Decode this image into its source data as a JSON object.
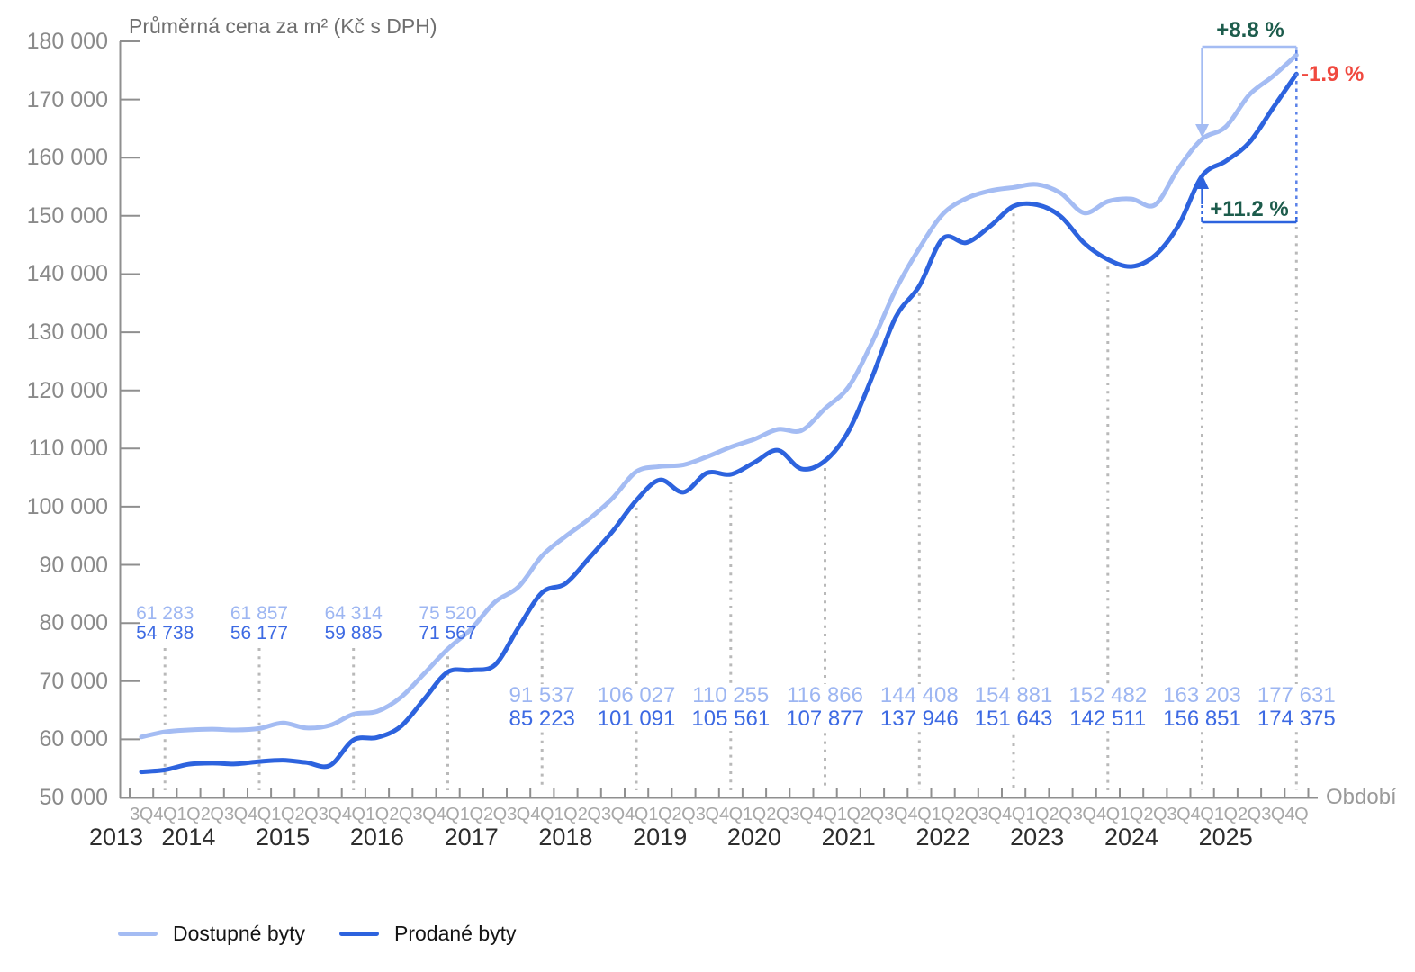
{
  "title": "Průměrná cena za m² (Kč s DPH)",
  "xlabel": "Období",
  "legend": {
    "items": [
      {
        "label": "Dostupné byty",
        "color": "#a4bcf3"
      },
      {
        "label": "Prodané byty",
        "color": "#2d63de"
      }
    ]
  },
  "annotations": {
    "available_growth": {
      "text": "+8.8 %",
      "color": "#1d5c4c"
    },
    "sold_growth": {
      "text": "+11.2 %",
      "color": "#1d5c4c"
    },
    "price_gap": {
      "text": "-1.9 %",
      "color": "#f0493f"
    }
  },
  "colors": {
    "available_line": "#a4bcf3",
    "sold_line": "#2d63de",
    "available_label_text": "#9db6f2",
    "sold_label_text": "#3d6ae3",
    "grid_dots": "#b9b9b9",
    "axis": "#8f8f8f",
    "annotation_blue_dashed": "#5b82e8"
  },
  "chart_data": {
    "type": "line",
    "title": "Průměrná cena za m² (Kč s DPH)",
    "xlabel": "Období",
    "ylim": [
      50000,
      180000
    ],
    "ytick_step": 10000,
    "grid": "vertical dotted lines at each 4Q",
    "legend_position": "bottom-left",
    "years": [
      "2013",
      "2014",
      "2015",
      "2016",
      "2017",
      "2018",
      "2019",
      "2020",
      "2021",
      "2022",
      "2023",
      "2024",
      "2025"
    ],
    "quarters": [
      "3Q 2013",
      "4Q 2013",
      "1Q 2014",
      "2Q 2014",
      "3Q 2014",
      "4Q 2014",
      "1Q 2015",
      "2Q 2015",
      "3Q 2015",
      "4Q 2015",
      "1Q 2016",
      "2Q 2016",
      "3Q 2016",
      "4Q 2016",
      "1Q 2017",
      "2Q 2017",
      "3Q 2017",
      "4Q 2017",
      "1Q 2018",
      "2Q 2018",
      "3Q 2018",
      "4Q 2018",
      "1Q 2019",
      "2Q 2019",
      "3Q 2019",
      "4Q 2019",
      "1Q 2020",
      "2Q 2020",
      "3Q 2020",
      "4Q 2020",
      "1Q 2021",
      "2Q 2021",
      "3Q 2021",
      "4Q 2021",
      "1Q 2022",
      "2Q 2022",
      "3Q 2022",
      "4Q 2022",
      "1Q 2023",
      "2Q 2023",
      "3Q 2023",
      "4Q 2023",
      "1Q 2024",
      "2Q 2024",
      "3Q 2024",
      "4Q 2024",
      "1Q 2025",
      "2Q 2025",
      "3Q 2025",
      "4Q 2025"
    ],
    "series": [
      {
        "name": "Dostupné byty",
        "color": "#a4bcf3",
        "values": [
          60400,
          61283,
          61600,
          61750,
          61600,
          61857,
          62800,
          61950,
          62400,
          64314,
          64800,
          67200,
          71300,
          75520,
          79000,
          83600,
          86200,
          91537,
          94900,
          97900,
          101500,
          106027,
          106900,
          107200,
          108600,
          110255,
          111600,
          113300,
          113100,
          116866,
          120600,
          128300,
          137300,
          144408,
          150300,
          153000,
          154300,
          154881,
          155400,
          153900,
          150500,
          152482,
          152900,
          151900,
          158200,
          163203,
          165300,
          170800,
          174000,
          177631
        ]
      },
      {
        "name": "Prodané byty",
        "color": "#2d63de",
        "values": [
          54400,
          54738,
          55700,
          55900,
          55750,
          56177,
          56400,
          56000,
          55500,
          59885,
          60300,
          62200,
          66900,
          71567,
          71900,
          72800,
          79200,
          85223,
          86800,
          91200,
          95800,
          101091,
          104600,
          102500,
          105800,
          105561,
          107600,
          109700,
          106500,
          107877,
          113000,
          122300,
          132600,
          137946,
          146100,
          145400,
          148200,
          151643,
          151900,
          149900,
          145300,
          142511,
          141300,
          143200,
          148400,
          156851,
          159400,
          162600,
          168500,
          174375
        ]
      }
    ],
    "labeled_quarters": [
      {
        "quarter": "4Q 2013",
        "available": 61283,
        "sold": 54738
      },
      {
        "quarter": "4Q 2014",
        "available": 61857,
        "sold": 56177
      },
      {
        "quarter": "4Q 2015",
        "available": 64314,
        "sold": 59885
      },
      {
        "quarter": "4Q 2016",
        "available": 75520,
        "sold": 71567
      },
      {
        "quarter": "4Q 2017",
        "available": 91537,
        "sold": 85223
      },
      {
        "quarter": "4Q 2018",
        "available": 106027,
        "sold": 101091
      },
      {
        "quarter": "4Q 2019",
        "available": 110255,
        "sold": 105561
      },
      {
        "quarter": "4Q 2020",
        "available": 116866,
        "sold": 107877
      },
      {
        "quarter": "4Q 2021",
        "available": 144408,
        "sold": 137946
      },
      {
        "quarter": "4Q 2022",
        "available": 154881,
        "sold": 151643
      },
      {
        "quarter": "4Q 2023",
        "available": 152482,
        "sold": 142511
      },
      {
        "quarter": "4Q 2024",
        "available": 163203,
        "sold": 156851
      },
      {
        "quarter": "4Q 2025",
        "available": 177631,
        "sold": 174375
      }
    ],
    "annotation_texts": [
      "+8.8 %",
      "-1.9 %",
      "+11.2 %"
    ]
  }
}
